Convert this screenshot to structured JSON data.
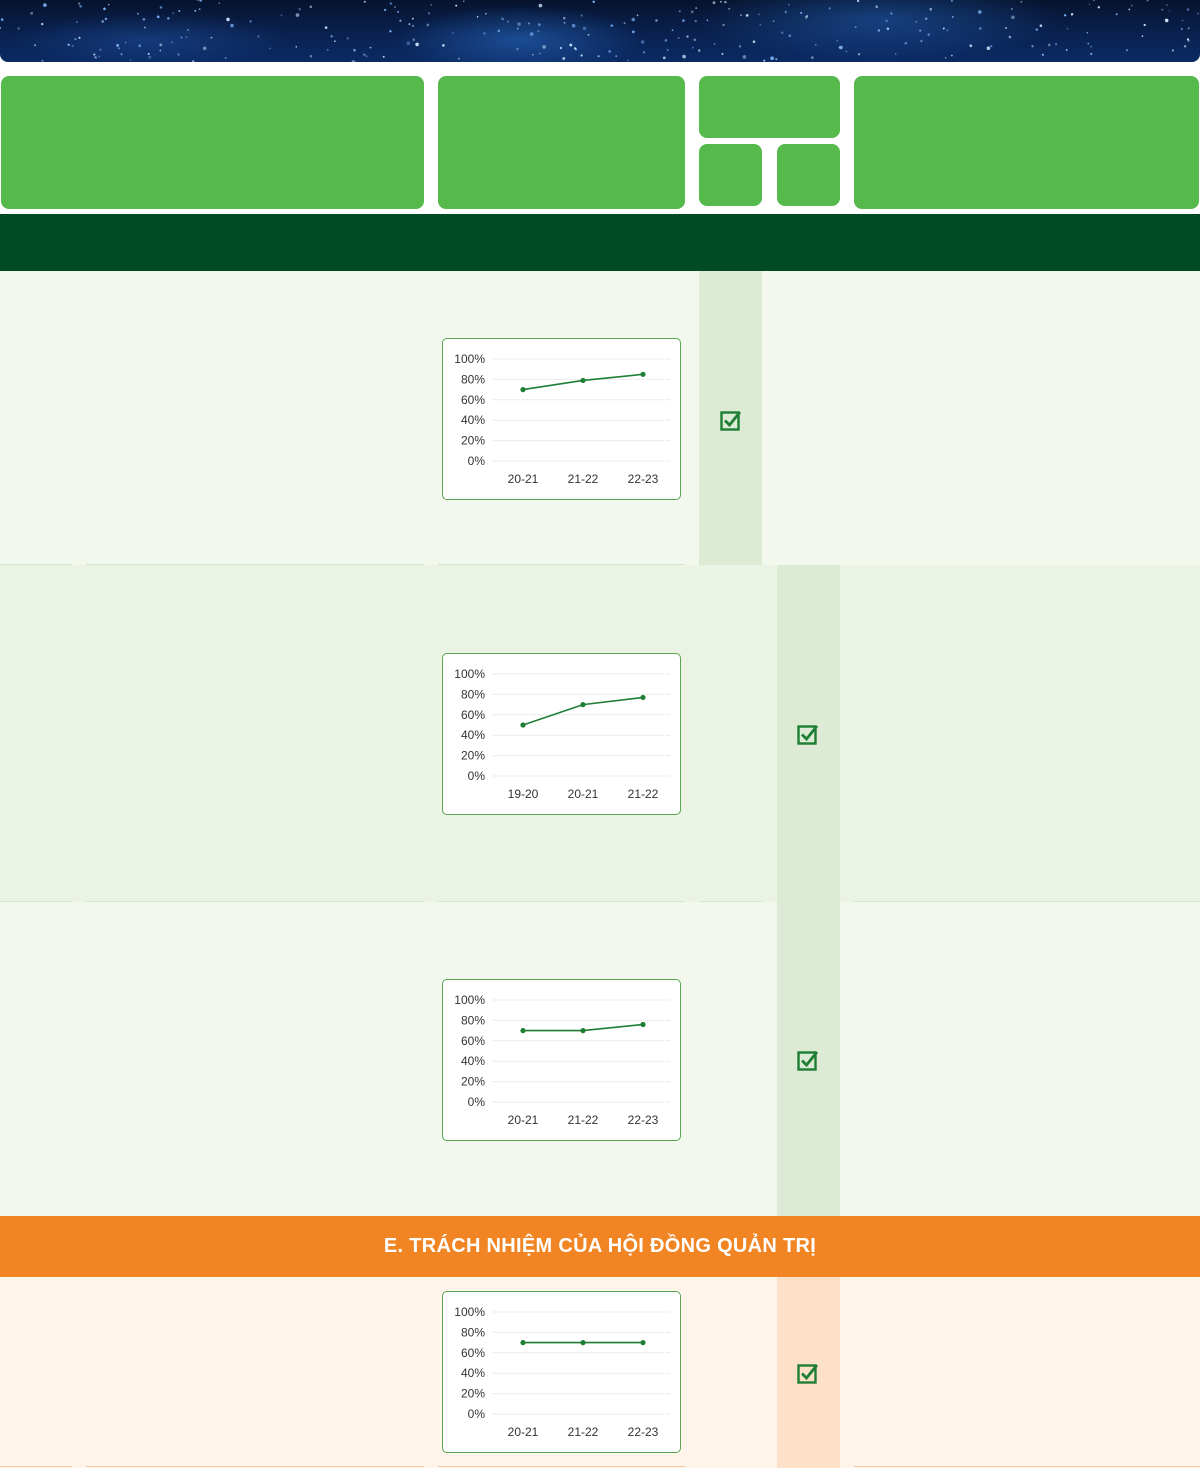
{
  "colors": {
    "header_green": "#55b94c",
    "section_dark_green": "#004b23",
    "accent_orange": "#f18524",
    "line_green": "#1e7e34"
  },
  "section_e_title": "E. TRÁCH NHIỆM CỦA HỘI ĐỒNG QUẢN TRỊ",
  "rows": [
    {
      "status_icon": "checkbox-checked-icon"
    },
    {
      "status_icon": "checkbox-checked-icon"
    },
    {
      "status_icon": "checkbox-checked-icon"
    },
    {
      "status_icon": "checkbox-checked-icon"
    }
  ],
  "chart_data": [
    {
      "type": "line",
      "x": [
        "20-21",
        "21-22",
        "22-23"
      ],
      "series": [
        {
          "values": [
            70,
            79,
            85
          ]
        }
      ],
      "yticks": [
        "100%",
        "80%",
        "60%",
        "40%",
        "20%",
        "0%"
      ],
      "ylim": [
        0,
        100
      ],
      "grid": true
    },
    {
      "type": "line",
      "x": [
        "19-20",
        "20-21",
        "21-22"
      ],
      "series": [
        {
          "values": [
            50,
            70,
            77
          ]
        }
      ],
      "yticks": [
        "100%",
        "80%",
        "60%",
        "40%",
        "20%",
        "0%"
      ],
      "ylim": [
        0,
        100
      ],
      "grid": true
    },
    {
      "type": "line",
      "x": [
        "20-21",
        "21-22",
        "22-23"
      ],
      "series": [
        {
          "values": [
            70,
            70,
            76
          ]
        }
      ],
      "yticks": [
        "100%",
        "80%",
        "60%",
        "40%",
        "20%",
        "0%"
      ],
      "ylim": [
        0,
        100
      ],
      "grid": true
    },
    {
      "type": "line",
      "x": [
        "20-21",
        "21-22",
        "22-23"
      ],
      "series": [
        {
          "values": [
            70,
            70,
            70
          ]
        }
      ],
      "yticks": [
        "100%",
        "80%",
        "60%",
        "40%",
        "20%",
        "0%"
      ],
      "ylim": [
        0,
        100
      ],
      "grid": true
    }
  ]
}
